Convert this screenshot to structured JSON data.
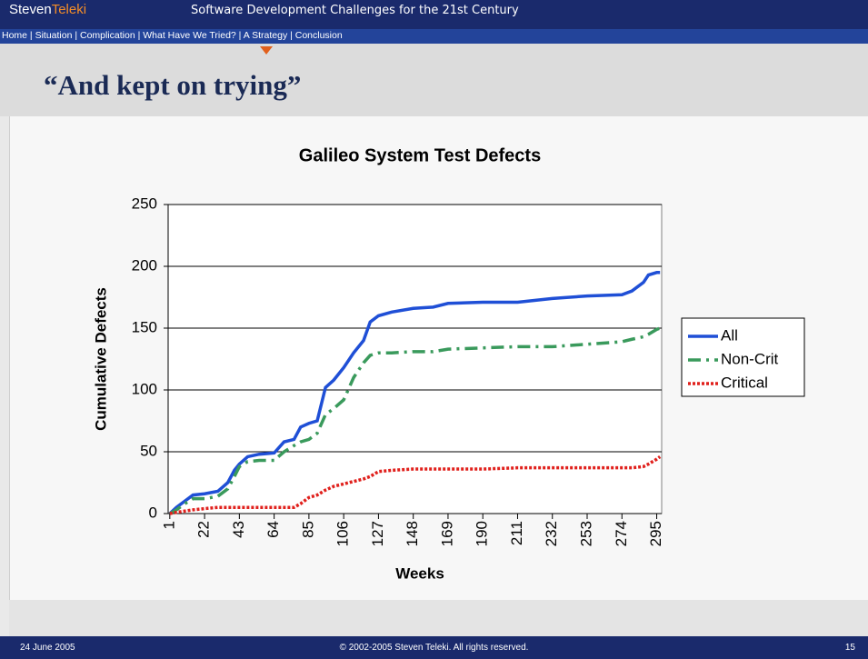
{
  "header": {
    "brand_first": "Steven",
    "brand_second": "Teleki",
    "subtitle": "Software Development Challenges for the 21st Century",
    "nav": "Home | Situation | Complication | What Have We Tried? | A Strategy | Conclusion"
  },
  "slide_title": "“And kept on trying”",
  "footer": {
    "date": "24 June 2005",
    "copyright": "© 2002-2005 Steven Teleki. All rights reserved.",
    "page": "15"
  },
  "chart_data": {
    "type": "line",
    "title": "Galileo System Test Defects",
    "x_label": "Weeks",
    "y_label": "Cumulative Defects",
    "x": [
      1,
      5,
      10,
      15,
      22,
      30,
      36,
      40,
      43,
      48,
      55,
      64,
      70,
      76,
      80,
      85,
      90,
      95,
      100,
      106,
      112,
      118,
      122,
      127,
      135,
      148,
      160,
      169,
      190,
      211,
      232,
      253,
      274,
      280,
      287,
      290,
      295,
      297
    ],
    "series": [
      {
        "name": "All",
        "color": "#1f4fd6",
        "dash": "solid",
        "values": [
          0,
          5,
          10,
          15,
          16,
          18,
          25,
          35,
          40,
          46,
          48,
          49,
          58,
          60,
          70,
          73,
          75,
          102,
          108,
          118,
          130,
          140,
          155,
          160,
          163,
          166,
          167,
          170,
          171,
          171,
          174,
          176,
          177,
          180,
          187,
          193,
          195,
          195
        ]
      },
      {
        "name": "Non-Crit",
        "color": "#3a9a5c",
        "dash": "dashdot",
        "values": [
          0,
          3,
          8,
          12,
          12,
          14,
          20,
          30,
          38,
          42,
          43,
          43,
          50,
          55,
          58,
          60,
          65,
          80,
          85,
          92,
          110,
          122,
          128,
          130,
          130,
          131,
          131,
          133,
          134,
          135,
          135,
          137,
          139,
          141,
          143,
          145,
          149,
          150
        ]
      },
      {
        "name": "Critical",
        "color": "#e0201c",
        "dash": "dotted",
        "values": [
          0,
          1,
          2,
          3,
          4,
          5,
          5,
          5,
          5,
          5,
          5,
          5,
          5,
          5,
          8,
          13,
          15,
          19,
          22,
          24,
          26,
          28,
          30,
          34,
          35,
          36,
          36,
          36,
          36,
          37,
          37,
          37,
          37,
          37,
          38,
          40,
          44,
          46
        ]
      }
    ],
    "xlim": [
      0,
      298
    ],
    "xticks": [
      1,
      22,
      43,
      64,
      85,
      106,
      127,
      148,
      169,
      190,
      211,
      232,
      253,
      274,
      295
    ],
    "ylim": [
      0,
      250
    ],
    "yticks": [
      0,
      50,
      100,
      150,
      200,
      250
    ],
    "grid": true,
    "legend": "right"
  }
}
